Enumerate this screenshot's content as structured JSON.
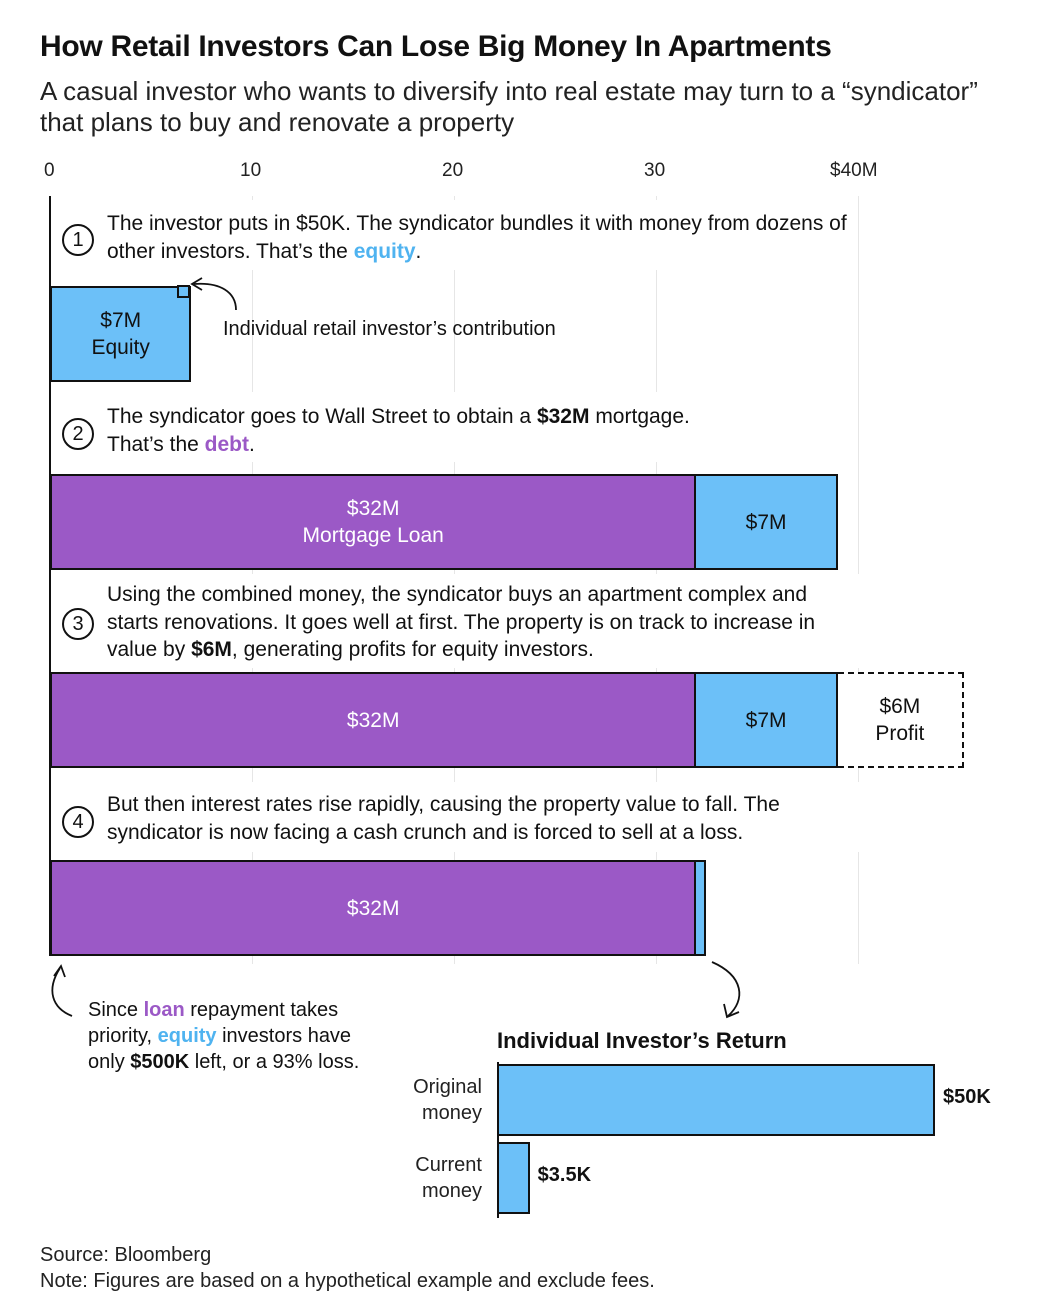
{
  "title": "How Retail Investors Can Lose Big Money In Apartments",
  "subtitle": "A casual investor who wants to diversify into real estate may turn to a “syndicator” that plans to buy and renovate a property",
  "chart_data": {
    "type": "bar",
    "orientation": "horizontal",
    "unit": "$M",
    "xlim": [
      0,
      40
    ],
    "ticks": [
      "0",
      "10",
      "20",
      "30",
      "$40M"
    ],
    "steps": [
      {
        "number": "1",
        "text_a": "The investor puts in $50K. The syndicator bundles it with money from dozens of other investors. That’s the ",
        "text_hl": "equity",
        "text_b": ".",
        "segments": [
          {
            "name": "Equity",
            "value": 7,
            "label1": "$7M",
            "label2": "Equity"
          }
        ]
      },
      {
        "number": "2",
        "text_a": "The syndicator goes to Wall Street to obtain a ",
        "text_bold": "$32M",
        "text_b": " mortgage.",
        "text_c": "That’s the ",
        "text_hl": "debt",
        "text_d": ".",
        "segments": [
          {
            "name": "Mortgage Loan",
            "value": 32,
            "label1": "$32M",
            "label2": "Mortgage Loan"
          },
          {
            "name": "Equity",
            "value": 7,
            "label1": "$7M"
          }
        ]
      },
      {
        "number": "3",
        "text_a": "Using the combined money, the syndicator buys an apartment complex and starts renovations. It goes well at first. The property is on track to increase in value by ",
        "text_bold": "$6M",
        "text_b": ", generating profits for equity investors.",
        "segments": [
          {
            "name": "Debt",
            "value": 32,
            "label1": "$32M"
          },
          {
            "name": "Equity",
            "value": 7,
            "label1": "$7M"
          },
          {
            "name": "Profit",
            "value": 6,
            "label1": "$6M",
            "label2": "Profit"
          }
        ]
      },
      {
        "number": "4",
        "text_a": "But then interest rates rise rapidly, causing the property value to fall. The syndicator is now facing a cash crunch and is forced to sell at a loss.",
        "segments": [
          {
            "name": "Debt",
            "value": 32,
            "label1": "$32M"
          },
          {
            "name": "Equity",
            "value": 0.5
          }
        ]
      }
    ],
    "individual_return": {
      "title": "Individual Investor’s Return",
      "unit": "$K",
      "bars": [
        {
          "label1": "Original",
          "label2": "money",
          "value": 50,
          "value_label": "$50K"
        },
        {
          "label1": "Current",
          "label2": "money",
          "value": 3.5,
          "value_label": "$3.5K"
        }
      ]
    }
  },
  "annotations": {
    "contribution": "Individual retail investor’s contribution",
    "loss_a": "Since ",
    "loss_loan": "loan",
    "loss_b": " repayment takes priority, ",
    "loss_equity": "equity",
    "loss_c": " investors have only ",
    "loss_bold": "$500K",
    "loss_d": " left, or a 93% loss."
  },
  "footer": {
    "source": "Source: Bloomberg",
    "note": "Note: Figures are based on a hypothetical example and exclude fees."
  },
  "colors": {
    "debt": "#9b59c6",
    "equity": "#6cc0f8",
    "axis": "#111111",
    "grid": "#e6e6e6"
  }
}
